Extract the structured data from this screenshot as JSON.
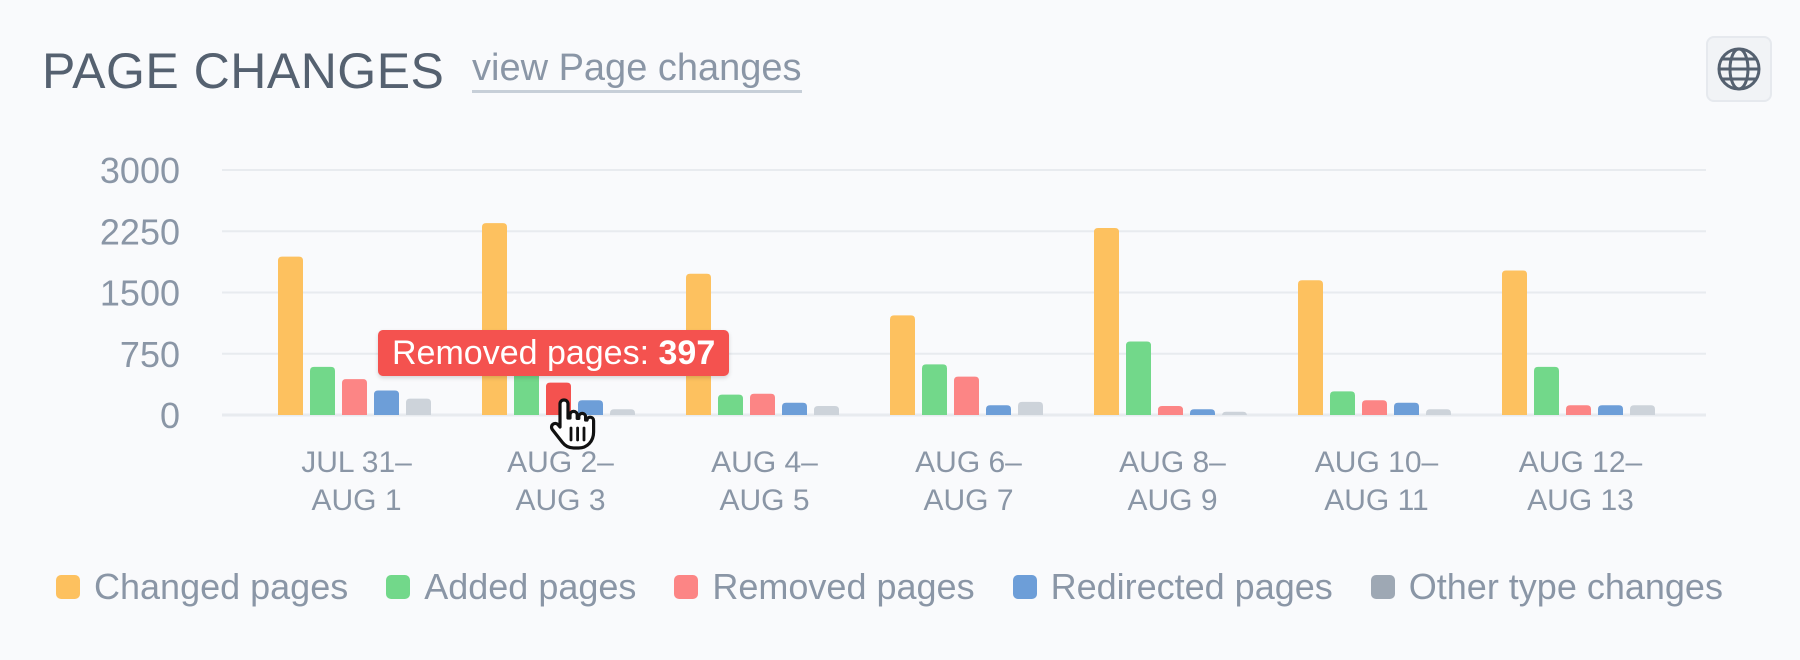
{
  "header": {
    "title": "PAGE CHANGES",
    "link_label": "view Page changes",
    "globe_icon": "globe-icon"
  },
  "colors": {
    "changed": "#fdc15f",
    "added": "#72d88a",
    "removed": "#fc8585",
    "redirected": "#6d9ed8",
    "other": "#cdd3da",
    "removed_highlight": "#f4524f",
    "grid": "#e8ebef",
    "axis_text": "#8a96a6"
  },
  "tooltip": {
    "label": "Removed pages:",
    "value": "397"
  },
  "chart_data": {
    "type": "bar",
    "categories": [
      [
        "JUL 31–",
        "AUG 1"
      ],
      [
        "AUG 2–",
        "AUG 3"
      ],
      [
        "AUG 4–",
        "AUG 5"
      ],
      [
        "AUG 6–",
        "AUG 7"
      ],
      [
        "AUG 8–",
        "AUG 9"
      ],
      [
        "AUG 10–",
        "AUG 11"
      ],
      [
        "AUG 12–",
        "AUG 13"
      ]
    ],
    "ylim": [
      0,
      3000
    ],
    "yticks": [
      "3000",
      "2250",
      "1500",
      "750",
      "0"
    ],
    "ytick_values": [
      3000,
      2250,
      1500,
      750,
      0
    ],
    "grid": true,
    "legend_position": "bottom",
    "series": [
      {
        "name": "Changed pages",
        "color_key": "changed",
        "values": [
          1940,
          2350,
          1730,
          1220,
          2290,
          1650,
          1770
        ]
      },
      {
        "name": "Added pages",
        "color_key": "added",
        "values": [
          590,
          560,
          250,
          620,
          900,
          290,
          590
        ]
      },
      {
        "name": "Removed pages",
        "color_key": "removed",
        "values": [
          440,
          397,
          260,
          470,
          110,
          180,
          120
        ]
      },
      {
        "name": "Redirected pages",
        "color_key": "redirected",
        "values": [
          300,
          180,
          150,
          120,
          70,
          150,
          120
        ]
      },
      {
        "name": "Other type changes",
        "color_key": "other",
        "values": [
          200,
          70,
          110,
          160,
          40,
          70,
          120
        ]
      }
    ],
    "highlight": {
      "series": 2,
      "category": 1
    }
  },
  "legend": {
    "items": [
      {
        "label": "Changed pages",
        "color": "#fdc15f"
      },
      {
        "label": "Added pages",
        "color": "#72d88a"
      },
      {
        "label": "Removed pages",
        "color": "#fc8585"
      },
      {
        "label": "Redirected pages",
        "color": "#6d9ed8"
      },
      {
        "label": "Other type changes",
        "color": "#9ea8b4"
      }
    ]
  }
}
